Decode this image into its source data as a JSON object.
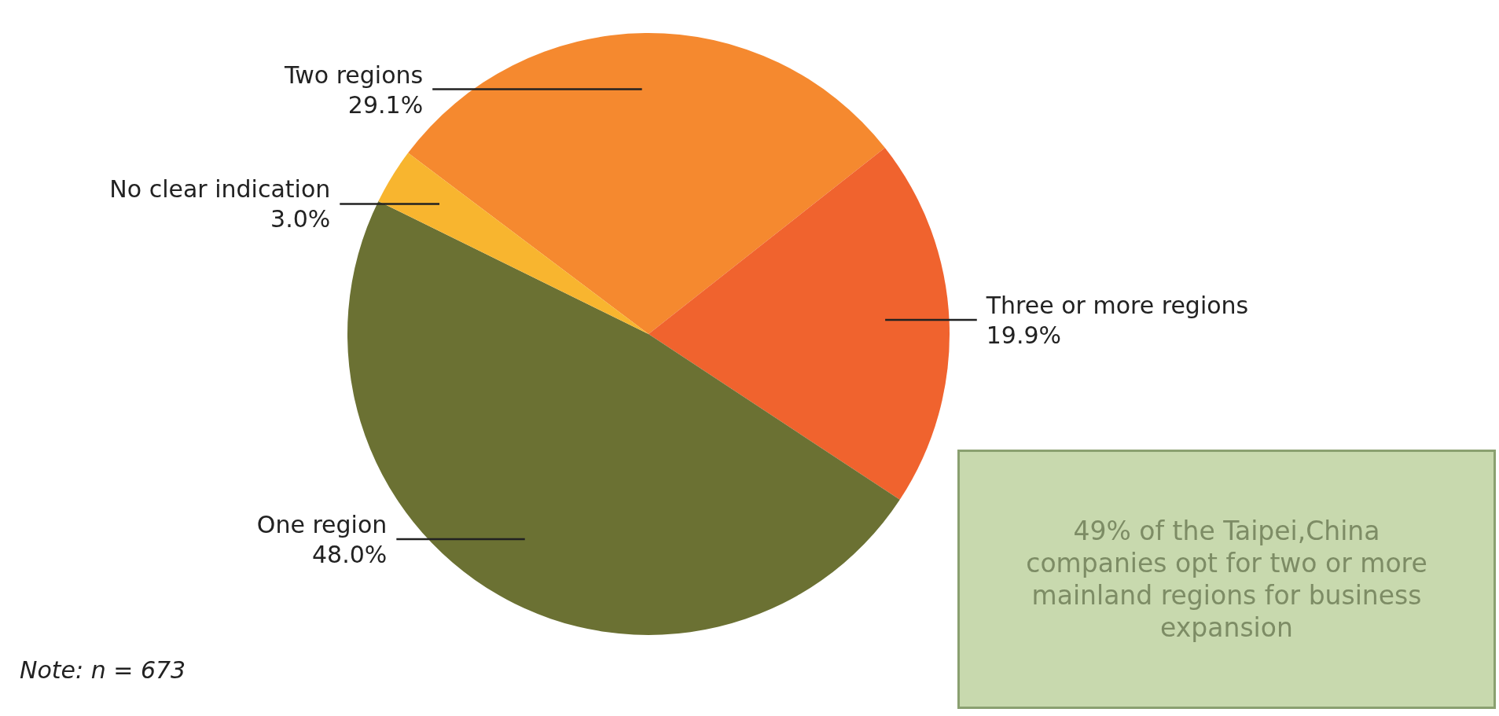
{
  "chart_data": {
    "type": "pie",
    "categories": [
      "Two regions",
      "Three or more regions",
      "One region",
      "No clear indication"
    ],
    "values": [
      29.1,
      19.9,
      48.0,
      3.0
    ],
    "value_labels": [
      "29.1%",
      "19.9%",
      "48.0%",
      "3.0%"
    ],
    "colors": [
      "#f5892f",
      "#f0632e",
      "#6b7133",
      "#f8b52f"
    ],
    "legend": false,
    "annotations": [
      "Note: n = 673",
      "49% of the Taipei,China companies opt for two or more mainland regions for business expansion"
    ]
  }
}
